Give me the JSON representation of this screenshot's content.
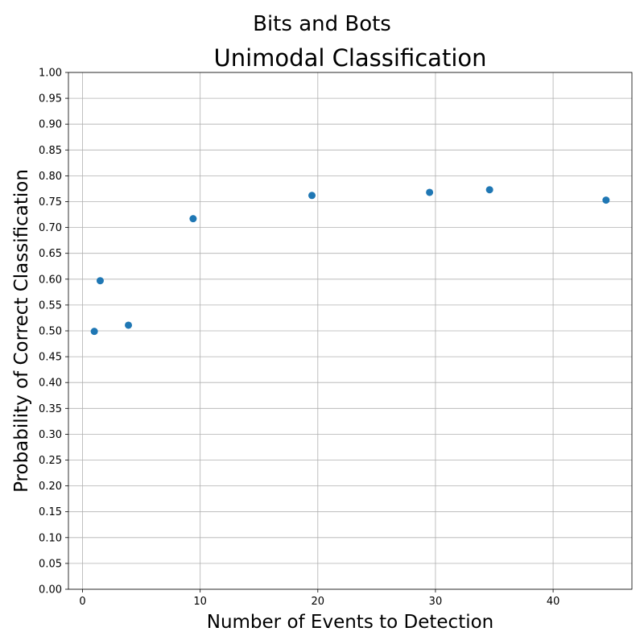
{
  "figure": {
    "suptitle": "Bits and Bots"
  },
  "chart_data": {
    "type": "scatter",
    "title": "Unimodal Classification",
    "xlabel": "Number of Events to Detection",
    "ylabel": "Probability of Correct Classification",
    "xlim": [
      -1.2,
      46.7
    ],
    "ylim": [
      0,
      1
    ],
    "xticks": [
      0,
      10,
      20,
      30,
      40
    ],
    "xtick_labels": [
      "0",
      "10",
      "20",
      "30",
      "40"
    ],
    "yticks": [
      0,
      0.05,
      0.1,
      0.15,
      0.2,
      0.25,
      0.3,
      0.35,
      0.4,
      0.45,
      0.5,
      0.55,
      0.6,
      0.65,
      0.7,
      0.75,
      0.8,
      0.85,
      0.9,
      0.95,
      1.0
    ],
    "ytick_labels": [
      "0.00",
      "0.05",
      "0.10",
      "0.15",
      "0.20",
      "0.25",
      "0.30",
      "0.35",
      "0.40",
      "0.45",
      "0.50",
      "0.55",
      "0.60",
      "0.65",
      "0.70",
      "0.75",
      "0.80",
      "0.85",
      "0.90",
      "0.95",
      "1.00"
    ],
    "grid": true,
    "marker_color": "#1f77b4",
    "x": [
      1.0,
      1.5,
      3.9,
      9.4,
      19.5,
      29.5,
      34.6,
      44.5
    ],
    "y": [
      0.499,
      0.597,
      0.511,
      0.717,
      0.762,
      0.768,
      0.773,
      0.753
    ]
  }
}
